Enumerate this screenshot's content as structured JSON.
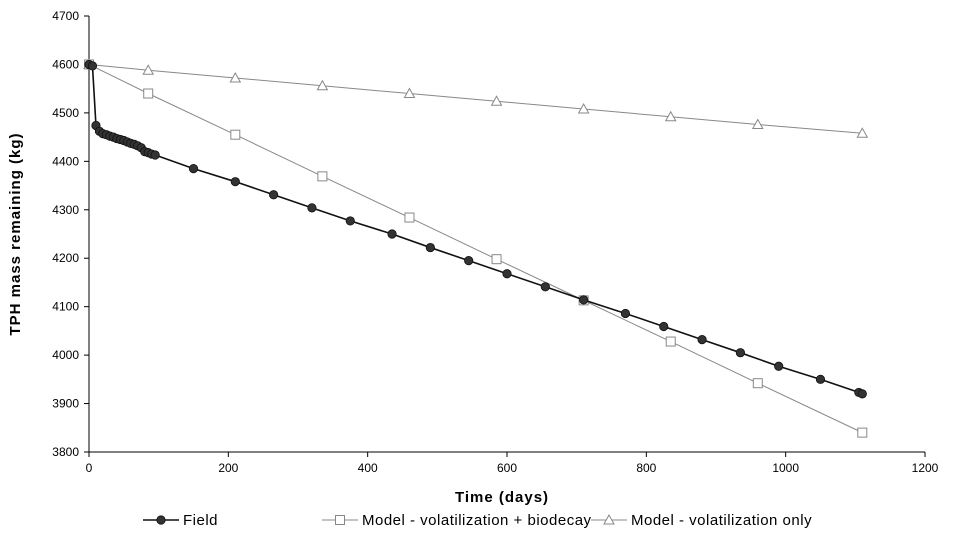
{
  "chart_data": {
    "type": "line",
    "xlabel": "Time (days)",
    "ylabel": "TPH mass remaining (kg)",
    "xlim": [
      0,
      1200
    ],
    "ylim": [
      3800,
      4700
    ],
    "xticks": [
      0,
      200,
      400,
      600,
      800,
      1000,
      1200
    ],
    "yticks": [
      3800,
      3900,
      4000,
      4100,
      4200,
      4300,
      4400,
      4500,
      4600,
      4700
    ],
    "grid": false,
    "legend_position": "bottom",
    "series": [
      {
        "name": "Field",
        "marker": "circle-filled",
        "color": "#222222",
        "x": [
          0,
          5,
          10,
          15,
          20,
          25,
          30,
          35,
          40,
          45,
          50,
          55,
          60,
          65,
          70,
          75,
          80,
          85,
          90,
          95,
          150,
          210,
          265,
          320,
          375,
          435,
          490,
          545,
          600,
          655,
          710,
          770,
          825,
          880,
          935,
          990,
          1050,
          1105,
          1110
        ],
        "y": [
          4600,
          4597,
          4474,
          4462,
          4457,
          4455,
          4452,
          4450,
          4447,
          4445,
          4443,
          4440,
          4437,
          4435,
          4432,
          4428,
          4420,
          4418,
          4415,
          4413,
          4385,
          4358,
          4331,
          4304,
          4277,
          4250,
          4222,
          4195,
          4168,
          4141,
          4114,
          4086,
          4059,
          4032,
          4005,
          3977,
          3950,
          3923,
          3920
        ]
      },
      {
        "name": "Model - volatilization + biodecay",
        "marker": "square-open",
        "color": "#888888",
        "x": [
          0,
          85,
          210,
          335,
          460,
          585,
          710,
          835,
          960,
          1110
        ],
        "y": [
          4600,
          4540,
          4455,
          4369,
          4284,
          4198,
          4113,
          4028,
          3942,
          3840
        ]
      },
      {
        "name": "Model - volatilization only",
        "marker": "triangle-open",
        "color": "#888888",
        "x": [
          0,
          85,
          210,
          335,
          460,
          585,
          710,
          835,
          960,
          1110
        ],
        "y": [
          4600,
          4588,
          4572,
          4556,
          4540,
          4524,
          4508,
          4492,
          4476,
          4458
        ]
      }
    ]
  }
}
